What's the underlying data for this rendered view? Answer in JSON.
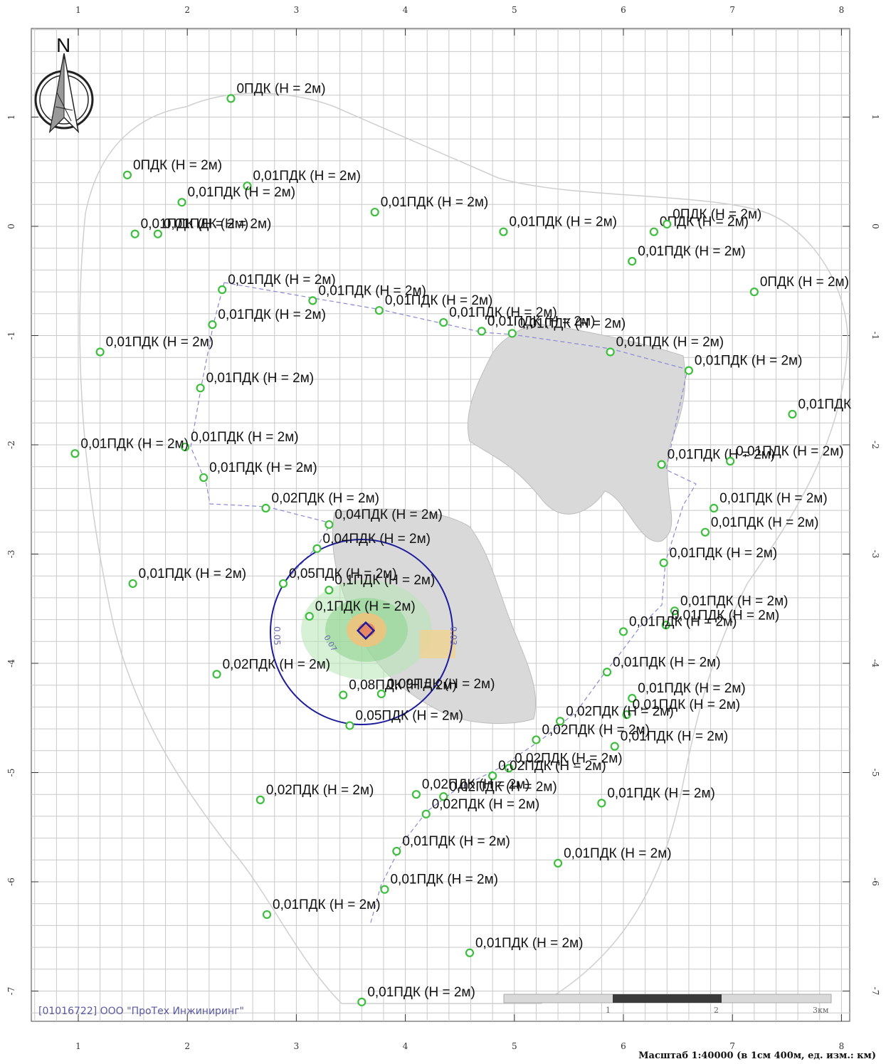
{
  "map": {
    "north_label": "N",
    "credit": "[01016722] ООО \"ПроТех Инжиниринг\"",
    "scale_caption": "Масштаб 1:40000 (в 1см 400м, ед. изм.: км)",
    "scale_bar": {
      "labels": [
        "1",
        "2",
        "3км"
      ]
    },
    "x_ticks": [
      "1",
      "2",
      "3",
      "4",
      "5",
      "6",
      "7",
      "8"
    ],
    "y_ticks": [
      "1",
      "0",
      "-1",
      "-2",
      "-3",
      "-4",
      "-5",
      "-6",
      "-7"
    ],
    "colors": {
      "grid": "#c9c9c9",
      "point_marker": "#3cbf3c",
      "route_line": "#8a8ad4",
      "circle": "#1c1c9c",
      "industrial_area": "#d9d9d9",
      "plume": "#8fd38f"
    },
    "points": [
      {
        "label": "0ПДК (Н = 2м)",
        "x": 2.4,
        "y": 1.17
      },
      {
        "label": "0ПДК (Н = 2м)",
        "x": 1.45,
        "y": 0.47
      },
      {
        "label": "0,01ПДК (Н = 2м)",
        "x": 2.55,
        "y": 0.37
      },
      {
        "label": "0,01ПДК (Н = 2м)",
        "x": 1.95,
        "y": 0.22
      },
      {
        "label": "0,01ПДК (Н = 2м)",
        "x": 3.72,
        "y": 0.13
      },
      {
        "label": "0,01ПДК (Н = 2м)",
        "x": 1.52,
        "y": -0.07
      },
      {
        "label": "0,01ПДК (Н = 2м)",
        "x": 1.73,
        "y": -0.07
      },
      {
        "label": "0,01ПДК (Н = 2м)",
        "x": 4.9,
        "y": -0.05
      },
      {
        "label": "0ПДК (Н = 2м)",
        "x": 6.28,
        "y": -0.05
      },
      {
        "label": "0ПДК (Н = 2м)",
        "x": 6.4,
        "y": 0.02
      },
      {
        "label": "0,01ПДК (Н = 2м)",
        "x": 6.08,
        "y": -0.32
      },
      {
        "label": "0ПДК (Н = 2м)",
        "x": 7.2,
        "y": -0.6
      },
      {
        "label": "0,01ПДК (Н = 2м)",
        "x": 2.32,
        "y": -0.58
      },
      {
        "label": "0,01ПДК (Н = 2м)",
        "x": 3.15,
        "y": -0.68
      },
      {
        "label": "0,01ПДК (Н = 2м)",
        "x": 3.76,
        "y": -0.77
      },
      {
        "label": "0,01ПДК (Н = 2м)",
        "x": 4.35,
        "y": -0.88
      },
      {
        "label": "0,01ПДК (Н = 2м)",
        "x": 4.7,
        "y": -0.96
      },
      {
        "label": "0,01ПДК (Н = 2м)",
        "x": 4.98,
        "y": -0.98
      },
      {
        "label": "0,01ПДК (Н = 2м)",
        "x": 2.23,
        "y": -0.9
      },
      {
        "label": "0,01ПДК (Н = 2м)",
        "x": 1.2,
        "y": -1.15
      },
      {
        "label": "0,01ПДК (Н = 2м)",
        "x": 5.88,
        "y": -1.15
      },
      {
        "label": "0,01ПДК (Н = 2м)",
        "x": 6.6,
        "y": -1.32
      },
      {
        "label": "0,01ПДК (Н = 2м)",
        "x": 2.12,
        "y": -1.48
      },
      {
        "label": "0,01ПДК",
        "x": 7.55,
        "y": -1.72
      },
      {
        "label": "0,01ПДК (Н = 2м)",
        "x": 1.98,
        "y": -2.02
      },
      {
        "label": "0,01ПДК (Н = 2м)",
        "x": 0.97,
        "y": -2.08
      },
      {
        "label": "0,01ПДК (Н = 2м)",
        "x": 6.35,
        "y": -2.18
      },
      {
        "label": "0,01ПДК (Н = 2м)",
        "x": 6.98,
        "y": -2.15
      },
      {
        "label": "0,01ПДК (Н = 2м)",
        "x": 2.15,
        "y": -2.3
      },
      {
        "label": "0,02ПДК (Н = 2м)",
        "x": 2.72,
        "y": -2.58
      },
      {
        "label": "0,01ПДК (Н = 2м)",
        "x": 6.83,
        "y": -2.58
      },
      {
        "label": "0,01ПДК (Н = 2м)",
        "x": 6.75,
        "y": -2.8
      },
      {
        "label": "0,04ПДК (Н = 2м)",
        "x": 3.3,
        "y": -2.73
      },
      {
        "label": "0,04ПДК (Н = 2м)",
        "x": 3.19,
        "y": -2.95
      },
      {
        "label": "0,01ПДК (Н = 2м)",
        "x": 6.37,
        "y": -3.08
      },
      {
        "label": "0,01ПДК (Н = 2м)",
        "x": 1.5,
        "y": -3.27
      },
      {
        "label": "0,05ПДК (Н = 2м)",
        "x": 2.88,
        "y": -3.27
      },
      {
        "label": "0,1ПДК (Н = 2м)",
        "x": 3.3,
        "y": -3.33
      },
      {
        "label": "0,1ПДК (Н = 2м)",
        "x": 3.12,
        "y": -3.57
      },
      {
        "label": "0,01ПДК (Н = 2м)",
        "x": 6.47,
        "y": -3.52
      },
      {
        "label": "0,01ПДК (Н = 2м)",
        "x": 6.39,
        "y": -3.65
      },
      {
        "label": "0,01ПДК (Н = 2м)",
        "x": 6.0,
        "y": -3.71
      },
      {
        "label": "0,01ПДК (Н = 2м)",
        "x": 5.85,
        "y": -4.08
      },
      {
        "label": "0,02ПДК (Н = 2м)",
        "x": 2.27,
        "y": -4.1
      },
      {
        "label": "0,01ПДК (Н = 2м)",
        "x": 6.08,
        "y": -4.32
      },
      {
        "label": "0,08ПДК (Н = 2м)",
        "x": 3.43,
        "y": -4.29
      },
      {
        "label": "0,09ПДК (Н = 2м)",
        "x": 3.78,
        "y": -4.28
      },
      {
        "label": "0,01ПДК (Н = 2м)",
        "x": 6.03,
        "y": -4.47
      },
      {
        "label": "0,02ПДК (Н = 2м)",
        "x": 5.42,
        "y": -4.53
      },
      {
        "label": "0,05ПДК (Н = 2м)",
        "x": 3.49,
        "y": -4.57
      },
      {
        "label": "0,02ПДК (Н = 2м)",
        "x": 5.2,
        "y": -4.7
      },
      {
        "label": "0,01ПДК (Н = 2м)",
        "x": 5.92,
        "y": -4.76
      },
      {
        "label": "0,02ПДК (Н = 2м)",
        "x": 4.95,
        "y": -4.96
      },
      {
        "label": "0,02ПДК (Н = 2м)",
        "x": 4.8,
        "y": -5.03
      },
      {
        "label": "0,02ПДК (Н = 2м)",
        "x": 4.1,
        "y": -5.2
      },
      {
        "label": "0,02ПДК (Н = 2м)",
        "x": 4.35,
        "y": -5.22
      },
      {
        "label": "0,02ПДК (Н = 2м)",
        "x": 2.67,
        "y": -5.25
      },
      {
        "label": "0,01ПДК (Н = 2м)",
        "x": 5.8,
        "y": -5.28
      },
      {
        "label": "0,02ПДК (Н = 2м)",
        "x": 4.19,
        "y": -5.38
      },
      {
        "label": "0,01ПДК (Н = 2м)",
        "x": 3.92,
        "y": -5.72
      },
      {
        "label": "0,01ПДК (Н = 2м)",
        "x": 5.4,
        "y": -5.83
      },
      {
        "label": "0,01ПДК (Н = 2м)",
        "x": 3.81,
        "y": -6.07
      },
      {
        "label": "0,01ПДК (Н = 2м)",
        "x": 2.73,
        "y": -6.3
      },
      {
        "label": "0,01ПДК (Н = 2м)",
        "x": 4.59,
        "y": -6.65
      },
      {
        "label": "0,01ПДК (Н = 2м)",
        "x": 3.6,
        "y": -7.1
      }
    ],
    "contour_labels": [
      "0.03",
      "0.05",
      "0.07"
    ]
  }
}
